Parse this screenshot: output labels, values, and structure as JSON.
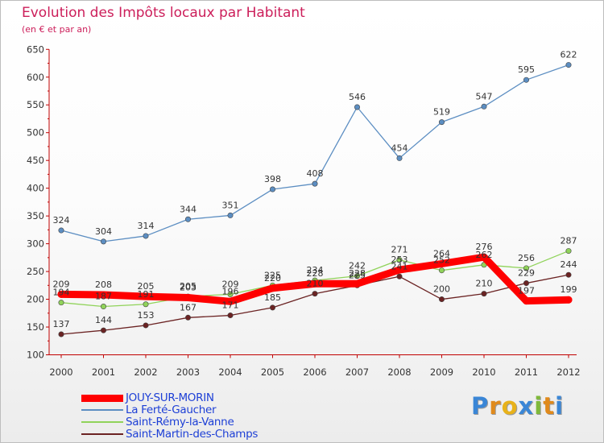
{
  "chart_data": {
    "type": "line",
    "title": "Evolution des Impôts locaux par Habitant",
    "subtitle": "(en € et par an)",
    "x": [
      "2000",
      "2001",
      "2002",
      "2003",
      "2004",
      "2005",
      "2006",
      "2007",
      "2008",
      "2009",
      "2010",
      "2011",
      "2012"
    ],
    "ylim": [
      100,
      650
    ],
    "yticks": [
      "100",
      "150",
      "200",
      "250",
      "300",
      "350",
      "400",
      "450",
      "500",
      "550",
      "600",
      "650"
    ],
    "grid": false,
    "legend_position": "bottom-left",
    "series": [
      {
        "name": "JOUY-SUR-MORIN",
        "color": "#ff0000",
        "values": [
          209,
          208,
          205,
          203,
          196,
          220,
          228,
          228,
          253,
          264,
          276,
          197,
          199
        ]
      },
      {
        "name": "La Ferté-Gaucher",
        "color": "#5c8ec2",
        "values": [
          324,
          304,
          314,
          344,
          351,
          398,
          408,
          546,
          454,
          519,
          547,
          595,
          622
        ]
      },
      {
        "name": "Saint-Rémy-la-Vanne",
        "color": "#90d35a",
        "values": [
          194,
          187,
          191,
          205,
          209,
          225,
          234,
          242,
          271,
          252,
          262,
          256,
          287
        ]
      },
      {
        "name": "Saint-Martin-des-Champs",
        "color": "#6b2323",
        "values": [
          137,
          144,
          153,
          167,
          171,
          185,
          210,
          225,
          241,
          200,
          210,
          229,
          244
        ]
      }
    ]
  },
  "legend": {
    "items": [
      "JOUY-SUR-MORIN",
      "La Ferté-Gaucher",
      "Saint-Rémy-la-Vanne",
      "Saint-Martin-des-Champs"
    ]
  },
  "brand": {
    "letters": [
      "P",
      "r",
      "o",
      "x",
      "i",
      "t",
      "i"
    ],
    "colors": [
      "#3a86d6",
      "#e08a1c",
      "#e8b21a",
      "#3a86d6",
      "#7fb93a",
      "#e08a1c",
      "#3a86d6"
    ]
  }
}
